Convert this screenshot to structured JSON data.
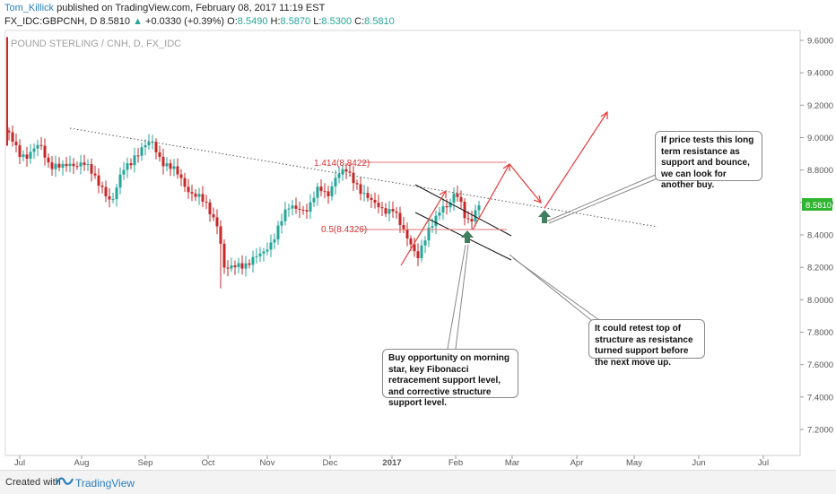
{
  "header": {
    "author": "Tom_Killick",
    "published": "published on TradingView.com, February 08, 2017 11:19 EST",
    "symbol": "FX_IDC:GBPCNH, D",
    "price": "8.5810",
    "change_arrow": "▲",
    "change": "+0.0330 (+0.39%)",
    "open_label": "O:",
    "open": "8.5490",
    "high_label": "H:",
    "high": "8.5870",
    "low_label": "L:",
    "low": "8.5300",
    "close_label": "C:",
    "close": "8.5810"
  },
  "watermark": "POUND STERLING / CNH, D, FX_IDC",
  "footer": {
    "created": "Created with",
    "brand": "TradingView"
  },
  "colors": {
    "up": "#26a69a",
    "down": "#c62828",
    "annot": "#e53935",
    "arrow_green": "#3f7e5e",
    "price_tag": "#2fb52f"
  },
  "chart_data": {
    "type": "candlestick",
    "title": "",
    "xlabel": "",
    "ylabel": "",
    "ylim": [
      7.0,
      9.7
    ],
    "y_ticks": [
      "9.6000",
      "9.4000",
      "9.2000",
      "9.0000",
      "8.8000",
      "8.6000",
      "8.4000",
      "8.2000",
      "8.0000",
      "7.8000",
      "7.6000",
      "7.4000",
      "7.2000"
    ],
    "x_ticks": [
      "Jul",
      "Aug",
      "Sep",
      "Oct",
      "Nov",
      "Dec",
      "2017",
      "Feb",
      "Mar",
      "Apr",
      "May",
      "Jun",
      "Jul"
    ],
    "last_price": "8.5810",
    "grid": false,
    "fib_levels": [
      {
        "label": "1.414(8.8422)",
        "value": 8.8422
      },
      {
        "label": "0.5(8.4326)",
        "value": 8.4326
      }
    ],
    "annotations": [
      "If price tests this long term resistance as support and bounce, we can look for another buy.",
      "It could retest top of structure as resistance turned support before the next move up.",
      "Buy opportunity on morning star, key Fibonacci retracement support level, and corrective structure support level."
    ]
  }
}
